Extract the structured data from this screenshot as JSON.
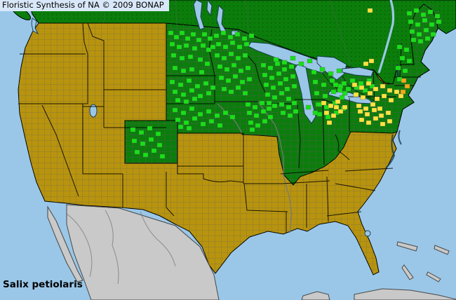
{
  "header": {
    "title": "Floristic Synthesis of NA © 2009 BONAP"
  },
  "footer": {
    "species_label": "Salix petiolaris"
  },
  "map": {
    "colors": {
      "ocean": "#9ac7e8",
      "state_present_green": "#0b7d0b",
      "canada_dot": "#054f05",
      "county_present_green": "#17e117",
      "county_rare_yellow": "#ffe33e",
      "county_adventive_orange": "#f0a818",
      "absent_khaki": "#b8940e",
      "outside_gray": "#c9c9c9",
      "outside_border": "#474747",
      "county_line": "#5c5c5c",
      "state_line": "#000000",
      "water_outline": "#16394d",
      "river_gray": "#7a7a7a",
      "province_line": "#4a6a4a",
      "title_bg": "#d9e8f9",
      "text": "#000000"
    },
    "county_cells": [
      {
        "name": "county-present-cell",
        "color_key": "county_present_green",
        "cells": [
          [
            240,
            44
          ],
          [
            248,
            50
          ],
          [
            256,
            44
          ],
          [
            264,
            52
          ],
          [
            272,
            46
          ],
          [
            280,
            54
          ],
          [
            288,
            46
          ],
          [
            296,
            52
          ],
          [
            242,
            60
          ],
          [
            252,
            64
          ],
          [
            262,
            62
          ],
          [
            274,
            66
          ],
          [
            286,
            62
          ],
          [
            294,
            68
          ],
          [
            244,
            76
          ],
          [
            256,
            80
          ],
          [
            268,
            78
          ],
          [
            282,
            82
          ],
          [
            292,
            88
          ],
          [
            246,
            94
          ],
          [
            258,
            98
          ],
          [
            270,
            96
          ],
          [
            284,
            100
          ],
          [
            305,
            48
          ],
          [
            315,
            44
          ],
          [
            325,
            50
          ],
          [
            335,
            46
          ],
          [
            345,
            52
          ],
          [
            355,
            48
          ],
          [
            308,
            60
          ],
          [
            318,
            64
          ],
          [
            328,
            58
          ],
          [
            338,
            64
          ],
          [
            348,
            60
          ],
          [
            300,
            64
          ],
          [
            306,
            76
          ],
          [
            316,
            80
          ],
          [
            326,
            74
          ],
          [
            336,
            80
          ],
          [
            346,
            76
          ],
          [
            310,
            92
          ],
          [
            320,
            96
          ],
          [
            330,
            90
          ],
          [
            340,
            98
          ],
          [
            350,
            94
          ],
          [
            312,
            108
          ],
          [
            322,
            112
          ],
          [
            332,
            106
          ],
          [
            342,
            114
          ],
          [
            352,
            110
          ],
          [
            316,
            124
          ],
          [
            326,
            128
          ],
          [
            336,
            122
          ],
          [
            346,
            130
          ],
          [
            372,
            90
          ],
          [
            382,
            94
          ],
          [
            392,
            88
          ],
          [
            402,
            96
          ],
          [
            412,
            92
          ],
          [
            374,
            104
          ],
          [
            384,
            108
          ],
          [
            394,
            102
          ],
          [
            404,
            110
          ],
          [
            414,
            106
          ],
          [
            376,
            118
          ],
          [
            386,
            122
          ],
          [
            396,
            116
          ],
          [
            406,
            124
          ],
          [
            416,
            120
          ],
          [
            378,
            132
          ],
          [
            388,
            136
          ],
          [
            398,
            130
          ],
          [
            408,
            138
          ],
          [
            380,
            144
          ],
          [
            390,
            82
          ],
          [
            402,
            86
          ],
          [
            414,
            80
          ],
          [
            426,
            88
          ],
          [
            438,
            84
          ],
          [
            444,
            100
          ],
          [
            456,
            96
          ],
          [
            468,
            102
          ],
          [
            480,
            98
          ],
          [
            446,
            114
          ],
          [
            458,
            118
          ],
          [
            470,
            112
          ],
          [
            482,
            120
          ],
          [
            448,
            130
          ],
          [
            460,
            134
          ],
          [
            472,
            128
          ],
          [
            484,
            136
          ],
          [
            450,
            146
          ],
          [
            462,
            150
          ],
          [
            474,
            144
          ],
          [
            452,
            160
          ],
          [
            464,
            164
          ],
          [
            476,
            158
          ],
          [
            488,
            130
          ],
          [
            486,
            152
          ],
          [
            242,
            114
          ],
          [
            254,
            118
          ],
          [
            266,
            112
          ],
          [
            278,
            120
          ],
          [
            290,
            116
          ],
          [
            300,
            122
          ],
          [
            246,
            128
          ],
          [
            258,
            132
          ],
          [
            270,
            126
          ],
          [
            282,
            134
          ],
          [
            294,
            130
          ],
          [
            250,
            140
          ],
          [
            262,
            142
          ],
          [
            274,
            138
          ],
          [
            246,
            154
          ],
          [
            258,
            158
          ],
          [
            270,
            152
          ],
          [
            282,
            160
          ],
          [
            294,
            156
          ],
          [
            306,
            162
          ],
          [
            318,
            158
          ],
          [
            328,
            164
          ],
          [
            250,
            168
          ],
          [
            262,
            172
          ],
          [
            274,
            166
          ],
          [
            286,
            174
          ],
          [
            298,
            170
          ],
          [
            310,
            176
          ],
          [
            254,
            178
          ],
          [
            266,
            180
          ],
          [
            350,
            146
          ],
          [
            360,
            150
          ],
          [
            370,
            144
          ],
          [
            380,
            152
          ],
          [
            388,
            148
          ],
          [
            352,
            158
          ],
          [
            362,
            162
          ],
          [
            372,
            156
          ],
          [
            382,
            164
          ],
          [
            354,
            172
          ],
          [
            364,
            176
          ],
          [
            374,
            170
          ],
          [
            356,
            182
          ],
          [
            398,
            146
          ],
          [
            408,
            150
          ],
          [
            416,
            144
          ],
          [
            400,
            158
          ],
          [
            410,
            162
          ],
          [
            418,
            156
          ],
          [
            436,
            150
          ],
          [
            446,
            158
          ],
          [
            452,
            146
          ],
          [
            186,
            182
          ],
          [
            198,
            186
          ],
          [
            210,
            180
          ],
          [
            222,
            188
          ],
          [
            188,
            198
          ],
          [
            200,
            202
          ],
          [
            212,
            196
          ],
          [
            224,
            204
          ],
          [
            192,
            214
          ],
          [
            204,
            218
          ],
          [
            216,
            212
          ],
          [
            228,
            220
          ],
          [
            475,
            118
          ],
          [
            487,
            116
          ],
          [
            499,
            112
          ],
          [
            511,
            116
          ],
          [
            523,
            112
          ],
          [
            481,
            126
          ],
          [
            493,
            124
          ],
          [
            505,
            122
          ],
          [
            517,
            126
          ],
          [
            527,
            120
          ],
          [
            580,
            16
          ],
          [
            590,
            12
          ],
          [
            600,
            18
          ],
          [
            610,
            14
          ],
          [
            620,
            20
          ],
          [
            582,
            28
          ],
          [
            592,
            32
          ],
          [
            602,
            26
          ],
          [
            612,
            32
          ],
          [
            622,
            28
          ],
          [
            584,
            42
          ],
          [
            594,
            46
          ],
          [
            604,
            40
          ],
          [
            614,
            46
          ],
          [
            586,
            54
          ],
          [
            596,
            56
          ],
          [
            606,
            52
          ],
          [
            566,
            64
          ],
          [
            576,
            68
          ],
          [
            570,
            80
          ],
          [
            580,
            84
          ],
          [
            564,
            94
          ],
          [
            574,
            98
          ],
          [
            566,
            110
          ]
        ]
      },
      {
        "name": "county-rare-cell",
        "color_key": "county_rare_yellow",
        "cells": [
          [
            502,
            118
          ],
          [
            512,
            122
          ],
          [
            522,
            116
          ],
          [
            532,
            124
          ],
          [
            542,
            120
          ],
          [
            552,
            126
          ],
          [
            504,
            132
          ],
          [
            514,
            136
          ],
          [
            524,
            130
          ],
          [
            534,
            138
          ],
          [
            544,
            134
          ],
          [
            554,
            140
          ],
          [
            508,
            148
          ],
          [
            518,
            152
          ],
          [
            528,
            146
          ],
          [
            538,
            152
          ],
          [
            510,
            156
          ],
          [
            520,
            160
          ],
          [
            530,
            154
          ],
          [
            540,
            162
          ],
          [
            550,
            158
          ],
          [
            512,
            168
          ],
          [
            522,
            172
          ],
          [
            532,
            166
          ],
          [
            542,
            174
          ],
          [
            552,
            170
          ],
          [
            458,
            144
          ],
          [
            468,
            148
          ],
          [
            478,
            142
          ],
          [
            488,
            150
          ],
          [
            462,
            158
          ],
          [
            472,
            162
          ],
          [
            482,
            156
          ],
          [
            466,
            172
          ],
          [
            476,
            150
          ],
          [
            562,
            128
          ],
          [
            568,
            134
          ],
          [
            518,
            88
          ],
          [
            526,
            84
          ],
          [
            524,
            12
          ]
        ]
      },
      {
        "name": "county-adventive-cell",
        "color_key": "county_adventive_orange",
        "cells": [
          [
            572,
            112
          ],
          [
            577,
            120
          ],
          [
            571,
            128
          ]
        ]
      }
    ]
  }
}
